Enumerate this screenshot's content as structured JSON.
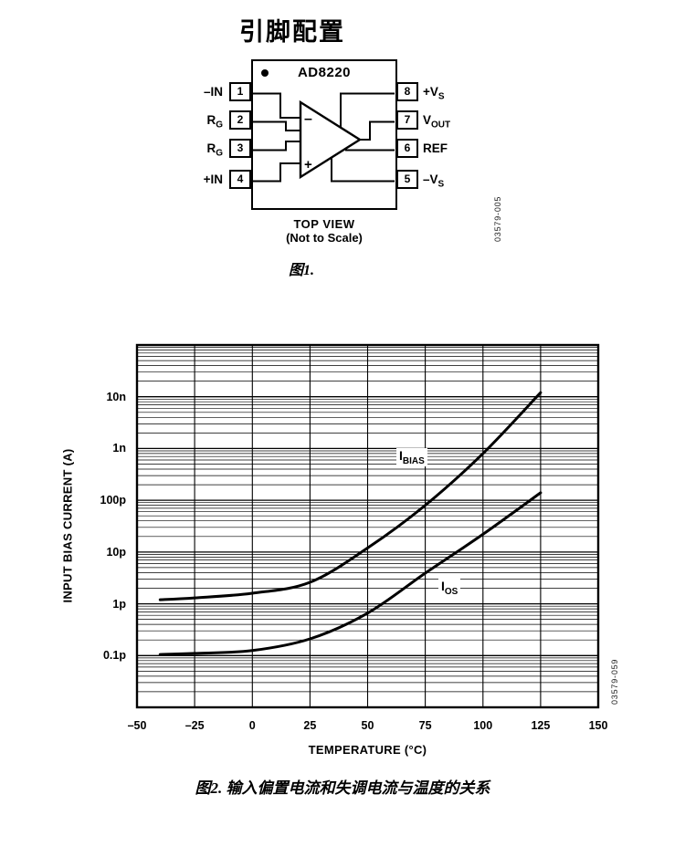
{
  "title": "引脚配置",
  "fig1": {
    "chip_name": "AD8220",
    "minus_sign": "–",
    "plus_sign": "+",
    "top_view": "TOP VIEW",
    "not_to_scale": "(Not to Scale)",
    "caption": "图1.",
    "code": "03579-005",
    "pins": {
      "left": [
        {
          "num": "1",
          "label": "–IN",
          "sub": ""
        },
        {
          "num": "2",
          "label": "R",
          "sub": "G"
        },
        {
          "num": "3",
          "label": "R",
          "sub": "G"
        },
        {
          "num": "4",
          "label": "+IN",
          "sub": ""
        }
      ],
      "right": [
        {
          "num": "8",
          "label": "+V",
          "sub": "S"
        },
        {
          "num": "7",
          "label": "V",
          "sub": "OUT"
        },
        {
          "num": "6",
          "label": "REF",
          "sub": ""
        },
        {
          "num": "5",
          "label": "–V",
          "sub": "S"
        }
      ]
    }
  },
  "fig2": {
    "caption": "图2. 输入偏置电流和失调电流与温度的关系",
    "code": "03579-059"
  },
  "chart_data": {
    "type": "line",
    "title": "",
    "xlabel": "TEMPERATURE (°C)",
    "ylabel": "INPUT BIAS CURRENT (A)",
    "xlim": [
      -50,
      150
    ],
    "xticks": [
      -50,
      -25,
      0,
      25,
      50,
      75,
      100,
      125,
      150
    ],
    "xtick_labels": [
      "–50",
      "–25",
      "0",
      "25",
      "50",
      "75",
      "100",
      "125",
      "150"
    ],
    "yscale": "log",
    "ylim": [
      1e-14,
      1e-07
    ],
    "ytick_values": [
      1e-13,
      1e-12,
      1e-11,
      1e-10,
      1e-09,
      1e-08
    ],
    "ytick_labels": [
      "0.1p",
      "1p",
      "10p",
      "100p",
      "1n",
      "10n"
    ],
    "grid": "full log minor grid, boxed frame",
    "legend": "inline curve labels",
    "series": [
      {
        "name": "IBIAS",
        "label_main": "I",
        "label_sub": "BIAS",
        "x": [
          -40,
          -25,
          0,
          25,
          50,
          75,
          100,
          125
        ],
        "y": [
          1.2e-12,
          1.3e-12,
          1.6e-12,
          2.6e-12,
          1.2e-11,
          8e-11,
          8e-10,
          1.2e-08
        ]
      },
      {
        "name": "IOS",
        "label_main": "I",
        "label_sub": "OS",
        "x": [
          -40,
          -25,
          0,
          25,
          50,
          75,
          100,
          125
        ],
        "y": [
          1.05e-13,
          1.1e-13,
          1.25e-13,
          2.1e-13,
          6.6e-13,
          3.9e-12,
          2.2e-11,
          1.4e-10
        ]
      }
    ]
  }
}
